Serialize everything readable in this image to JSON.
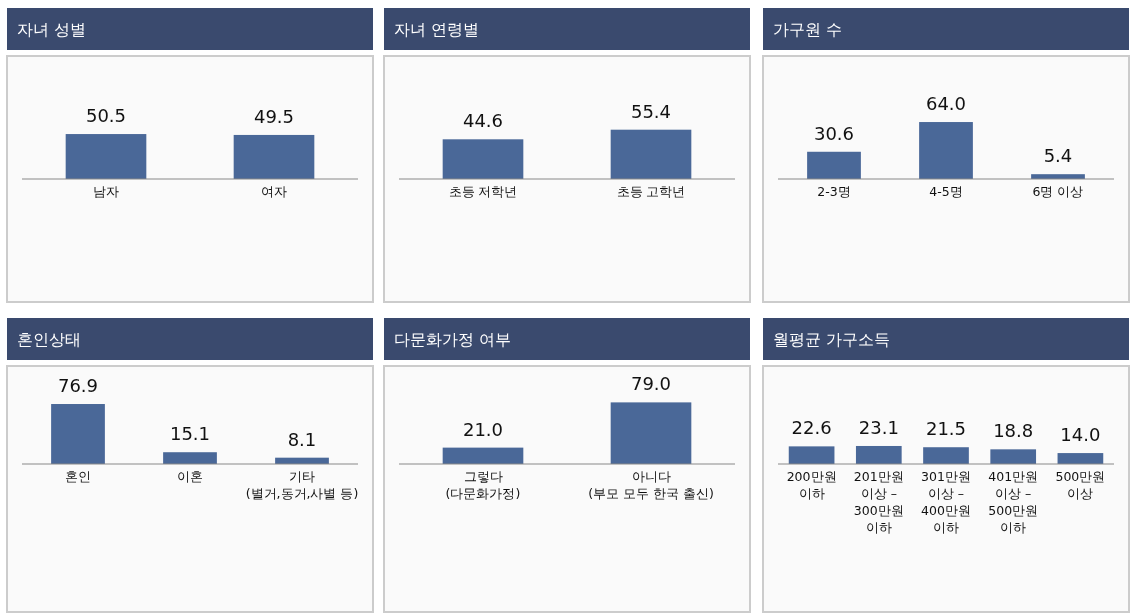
{
  "chart_data": [
    {
      "type": "bar",
      "title": "자녀 성별",
      "categories": [
        "남자",
        "여자"
      ],
      "values": [
        50.5,
        49.5
      ],
      "color": "#4a6898",
      "data_labels": true
    },
    {
      "type": "bar",
      "title": "자녀 연령별",
      "categories": [
        "초등 저학년",
        "초등 고학년"
      ],
      "values": [
        44.6,
        55.4
      ],
      "color": "#4a6898",
      "data_labels": true
    },
    {
      "type": "bar",
      "title": "가구원 수",
      "categories": [
        "2-3명",
        "4-5명",
        "6명 이상"
      ],
      "values": [
        30.6,
        64.0,
        5.4
      ],
      "color": "#4a6898",
      "value_labels": [
        "30.6",
        "64.0",
        "5.4"
      ]
    },
    {
      "type": "bar",
      "title": "혼인상태",
      "categories": [
        "혼인",
        "이혼",
        "기타\n(별거,동거,사별 등)"
      ],
      "values": [
        76.9,
        15.1,
        8.1
      ],
      "color": "#4a6898",
      "data_labels": true
    },
    {
      "type": "bar",
      "title": "다문화가정 여부",
      "categories": [
        "그렇다\n(다문화가정)",
        "아니다\n(부모 모두 한국 출신)"
      ],
      "values": [
        21.0,
        79.0
      ],
      "color": "#4a6898",
      "value_labels": [
        "21.0",
        "79.0"
      ]
    },
    {
      "type": "bar",
      "title": "월평균 가구소득",
      "categories": [
        "200만원\n이하",
        "201만원\n이상 –\n300만원\n이하",
        "301만원\n이상 –\n400만원\n이하",
        "401만원\n이상 –\n500만원\n이하",
        "500만원\n이상"
      ],
      "values": [
        22.6,
        23.1,
        21.5,
        18.8,
        14.0
      ],
      "color": "#4a6898",
      "value_labels": [
        "22.6",
        "23.1",
        "21.5",
        "18.8",
        "14.0"
      ]
    }
  ]
}
